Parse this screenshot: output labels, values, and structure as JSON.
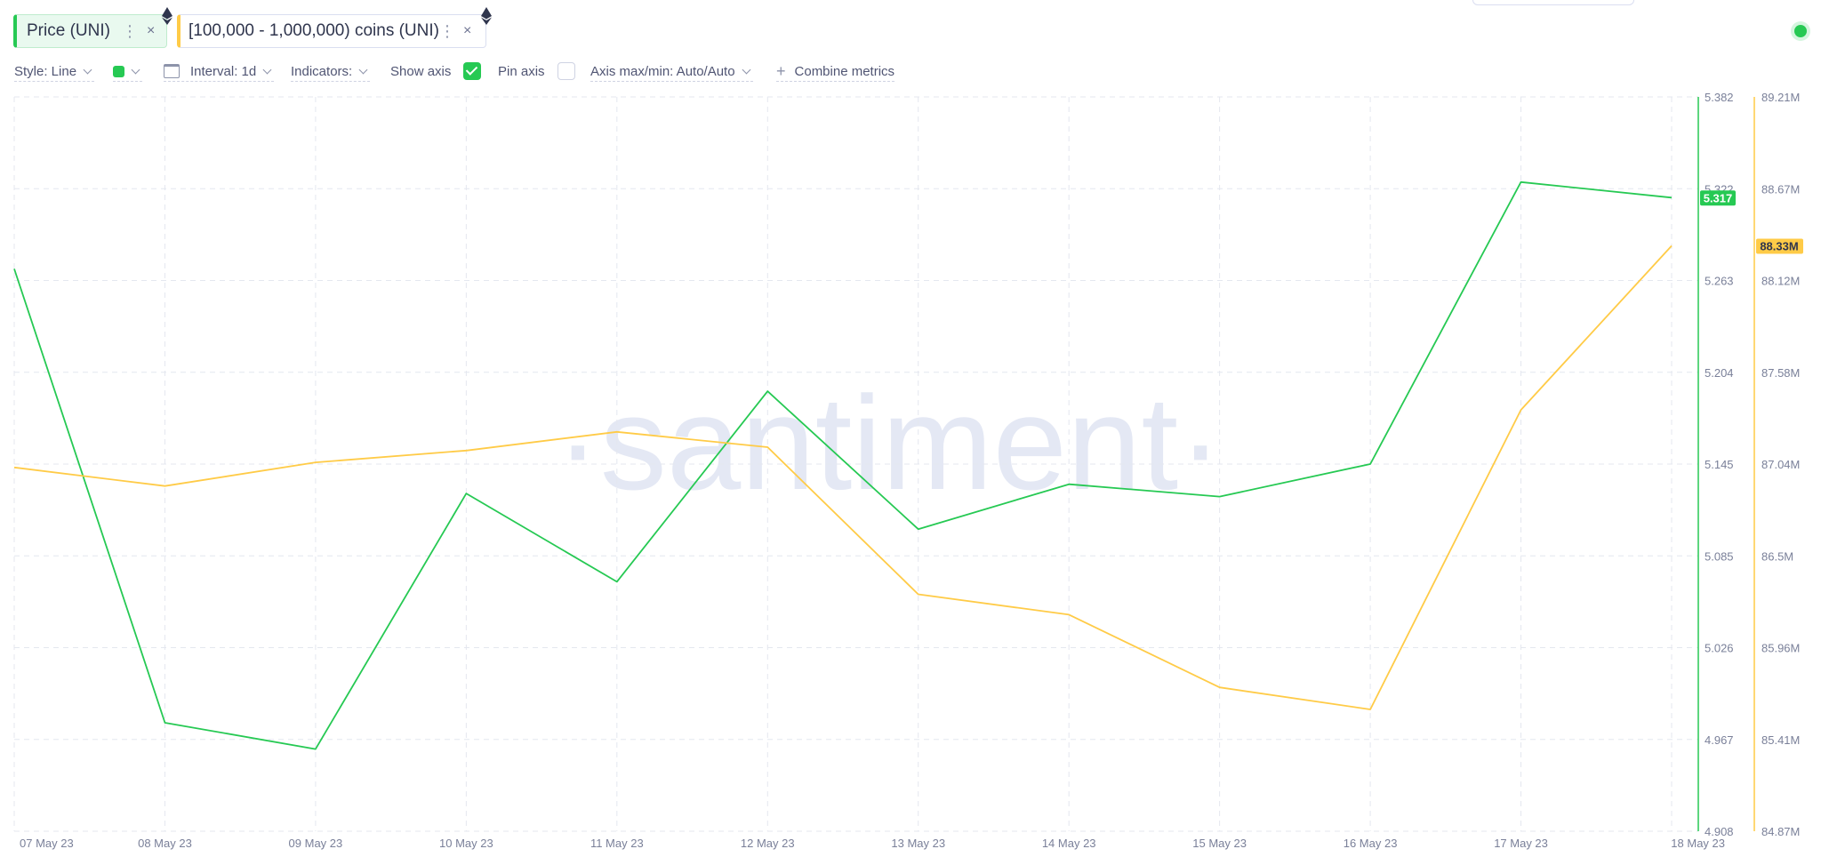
{
  "metrics": [
    {
      "label": "Price (UNI)",
      "color": "#26c953",
      "icon": "ethereum-icon",
      "menu_icon": "⋮",
      "close_icon": "×"
    },
    {
      "label": "[100,000 - 1,000,000) coins (UNI)",
      "color": "#ffcb47",
      "icon": "ethereum-icon",
      "menu_icon": "⋮",
      "close_icon": "×"
    }
  ],
  "toolbar": {
    "style_label": "Style: Line",
    "interval_label": "Interval: 1d",
    "indicators_label": "Indicators:",
    "show_axis_label": "Show axis",
    "show_axis_checked": true,
    "pin_axis_label": "Pin axis",
    "pin_axis_checked": false,
    "axis_minmax_label": "Axis max/min: Auto/Auto",
    "combine_label": "Combine metrics",
    "plus_icon": "+"
  },
  "watermark": "·santiment·",
  "chart_data": {
    "type": "line",
    "x": [
      "07 May 23",
      "08 May 23",
      "09 May 23",
      "10 May 23",
      "11 May 23",
      "12 May 23",
      "13 May 23",
      "14 May 23",
      "15 May 23",
      "16 May 23",
      "17 May 23",
      "18 May 23"
    ],
    "series": [
      {
        "name": "Price (UNI)",
        "color": "#26c953",
        "axis": "left",
        "values": [
          5.271,
          4.978,
          4.961,
          5.126,
          5.069,
          5.192,
          5.103,
          5.132,
          5.124,
          5.145,
          5.327,
          5.317
        ],
        "last_value_label": "5.317"
      },
      {
        "name": "[100,000 - 1,000,000) coins (UNI)",
        "color": "#ffcb47",
        "axis": "right",
        "values": [
          87.02,
          86.91,
          87.05,
          87.12,
          87.23,
          87.14,
          86.27,
          86.15,
          85.72,
          85.59,
          87.36,
          88.33
        ],
        "last_value_label": "88.33M"
      }
    ],
    "left_axis": {
      "min": 4.908,
      "max": 5.382,
      "ticks": [
        "5.382",
        "5.322",
        "5.263",
        "5.204",
        "5.145",
        "5.085",
        "5.026",
        "4.967",
        "4.908"
      ]
    },
    "right_axis": {
      "min": 84.87,
      "max": 89.21,
      "ticks": [
        "89.21M",
        "88.67M",
        "88.12M",
        "87.58M",
        "87.04M",
        "86.5M",
        "85.96M",
        "85.41M",
        "84.87M"
      ]
    },
    "grid": true
  }
}
